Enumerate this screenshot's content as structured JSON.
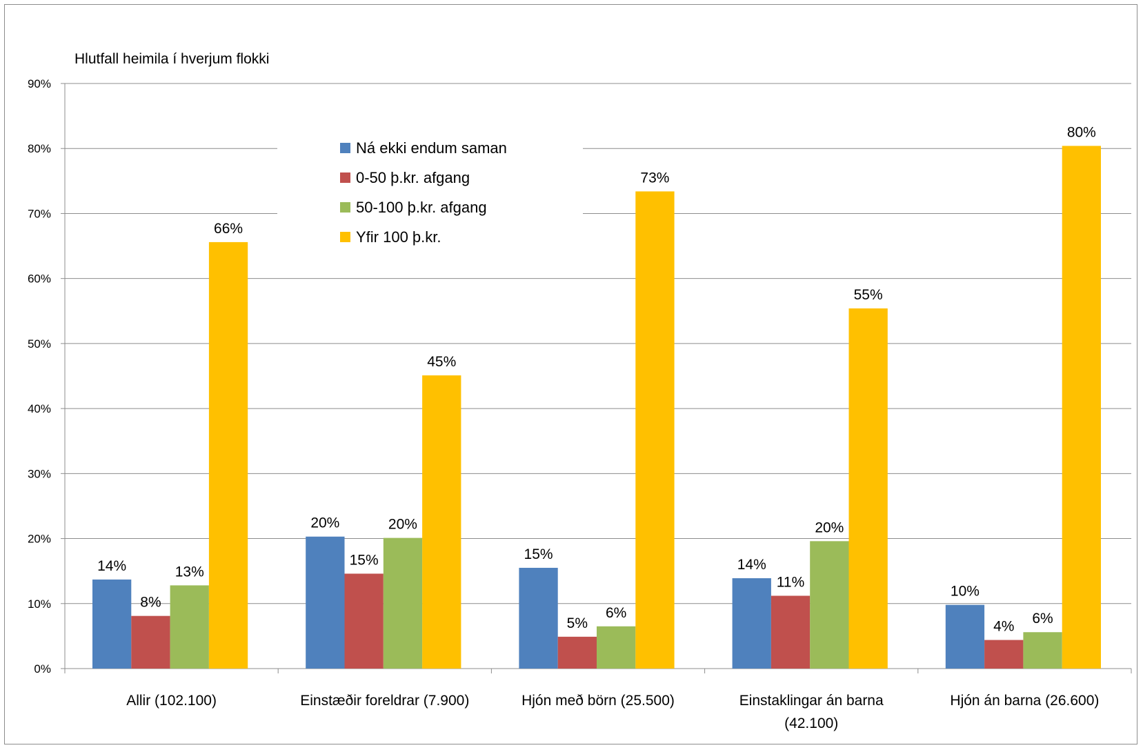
{
  "chart_data": {
    "type": "bar",
    "ylabel": "Hlutfall heimila í hverjum flokki",
    "ylim": [
      0,
      90
    ],
    "yticks": [
      "0%",
      "10%",
      "20%",
      "30%",
      "40%",
      "50%",
      "60%",
      "70%",
      "80%",
      "90%"
    ],
    "categories": [
      [
        "Allir (102.100)"
      ],
      [
        "Einstæðir foreldrar (7.900)"
      ],
      [
        "Hjón með börn (25.500)"
      ],
      [
        "Einstaklingar án barna",
        "(42.100)"
      ],
      [
        "Hjón án barna (26.600)"
      ]
    ],
    "series": [
      {
        "name": "Ná ekki endum saman",
        "color": "#4f81bd",
        "values": [
          13.7,
          20.3,
          15.5,
          13.9,
          9.8
        ],
        "labels": [
          "14%",
          "20%",
          "15%",
          "14%",
          "10%"
        ]
      },
      {
        "name": "0-50 þ.kr. afgang",
        "color": "#c0504d",
        "values": [
          8.1,
          14.6,
          4.9,
          11.2,
          4.4
        ],
        "labels": [
          "8%",
          "15%",
          "5%",
          "11%",
          "4%"
        ]
      },
      {
        "name": "50-100 þ.kr. afgang",
        "color": "#9bbb59",
        "values": [
          12.8,
          20.1,
          6.5,
          19.6,
          5.6
        ],
        "labels": [
          "13%",
          "20%",
          "6%",
          "20%",
          "6%"
        ]
      },
      {
        "name": "Yfir 100 þ.kr.",
        "color": "#ffc000",
        "values": [
          65.6,
          45.1,
          73.4,
          55.4,
          80.4
        ],
        "labels": [
          "66%",
          "45%",
          "73%",
          "55%",
          "80%"
        ]
      }
    ],
    "grid": true,
    "legend_position": "top-center"
  }
}
